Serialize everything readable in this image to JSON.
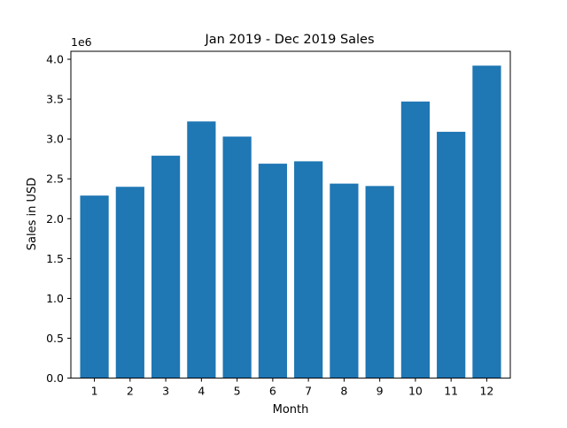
{
  "chart_data": {
    "type": "bar",
    "title": "Jan 2019 - Dec 2019 Sales",
    "xlabel": "Month",
    "ylabel": "Sales in USD",
    "y_offset_label": "1e6",
    "categories": [
      "1",
      "2",
      "3",
      "4",
      "5",
      "6",
      "7",
      "8",
      "9",
      "10",
      "11",
      "12"
    ],
    "values": [
      2290000,
      2400000,
      2790000,
      3220000,
      3030000,
      2690000,
      2720000,
      2440000,
      2410000,
      3470000,
      3090000,
      3920000
    ],
    "ylim": [
      0,
      4100000
    ],
    "y_ticks": [
      {
        "value": 0,
        "label": "0.0"
      },
      {
        "value": 500000,
        "label": "0.5"
      },
      {
        "value": 1000000,
        "label": "1.0"
      },
      {
        "value": 1500000,
        "label": "1.5"
      },
      {
        "value": 2000000,
        "label": "2.0"
      },
      {
        "value": 2500000,
        "label": "2.5"
      },
      {
        "value": 3000000,
        "label": "3.0"
      },
      {
        "value": 3500000,
        "label": "3.5"
      },
      {
        "value": 4000000,
        "label": "4.0"
      }
    ],
    "bar_color": "#1f77b4",
    "grid": false,
    "legend": "none"
  }
}
